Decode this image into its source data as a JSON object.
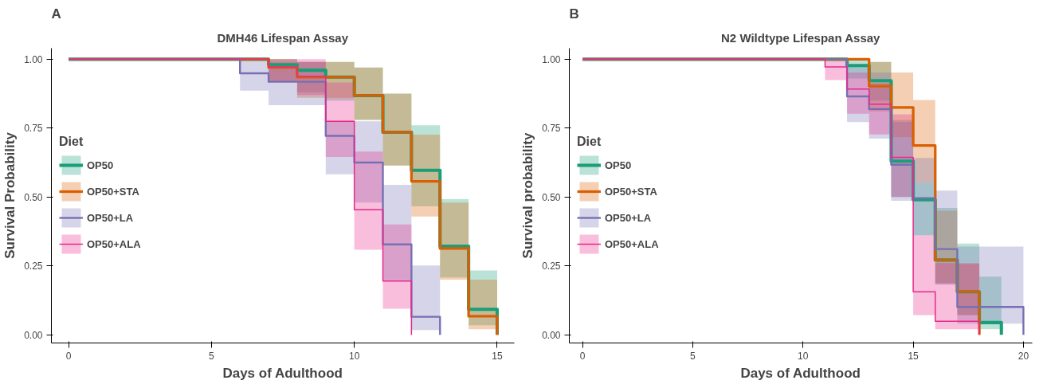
{
  "chart_data": [
    {
      "type": "step",
      "title": "DMH46 Lifespan Assay",
      "xlabel": "Days of Adulthood",
      "ylabel": "Survival Probability",
      "legend_title": "Diet",
      "legend": "left",
      "annotations": [
        "A"
      ],
      "xlim": [
        -0.6,
        15.6
      ],
      "xticks": [
        0,
        5,
        10,
        15
      ],
      "ylim": [
        -0.03,
        1.04
      ],
      "yticks": [
        {
          "value": 0,
          "label": "0.00"
        },
        {
          "value": 0.25,
          "label": "0.25"
        },
        {
          "value": 0.5,
          "label": "0.50"
        },
        {
          "value": 0.75,
          "label": "0.75"
        },
        {
          "value": 1,
          "label": "1.00"
        }
      ],
      "series": [
        {
          "name": "OP50",
          "color": "#1b9e77",
          "x": [
            0,
            7,
            8,
            9,
            10,
            11,
            12,
            13,
            14,
            15
          ],
          "values": [
            1,
            0.98,
            0.96,
            0.935,
            0.868,
            0.735,
            0.597,
            0.321,
            0.092,
            0
          ],
          "lower": [
            1,
            0.92,
            0.88,
            0.85,
            0.78,
            0.614,
            0.466,
            0.208,
            0.034,
            0.034
          ],
          "upper": [
            1,
            1,
            0.99,
            0.99,
            0.97,
            0.875,
            0.76,
            0.492,
            0.233,
            0.233
          ]
        },
        {
          "name": "OP50+STA",
          "color": "#d95f02",
          "x": [
            0,
            7,
            8,
            10,
            11,
            12,
            13,
            14,
            15
          ],
          "values": [
            1,
            0.97,
            0.935,
            0.868,
            0.735,
            0.557,
            0.313,
            0.067,
            0
          ],
          "lower": [
            1,
            0.92,
            0.86,
            0.78,
            0.614,
            0.429,
            0.2,
            0.02,
            0.02
          ],
          "upper": [
            1,
            1,
            0.99,
            0.97,
            0.875,
            0.726,
            0.48,
            0.2,
            0.2
          ]
        },
        {
          "name": "OP50+LA",
          "color": "#7570b3",
          "x": [
            0,
            6,
            7,
            9,
            10,
            11,
            12,
            13
          ],
          "values": [
            1,
            0.949,
            0.918,
            0.722,
            0.625,
            0.328,
            0.065,
            0
          ],
          "lower": [
            1,
            0.886,
            0.833,
            0.582,
            0.48,
            0.198,
            0.017,
            0.017
          ],
          "upper": [
            1,
            1,
            0.99,
            0.775,
            0.775,
            0.544,
            0.251,
            0.251
          ]
        },
        {
          "name": "OP50+ALA",
          "color": "#e7298a",
          "x": [
            0,
            7,
            8,
            9,
            10,
            11,
            12
          ],
          "values": [
            1,
            0.971,
            0.938,
            0.775,
            0.454,
            0.195,
            0
          ],
          "lower": [
            1,
            0.92,
            0.87,
            0.645,
            0.308,
            0.094,
            0.094
          ],
          "upper": [
            1,
            1,
            1,
            0.916,
            0.665,
            0.4,
            0.4
          ]
        }
      ]
    },
    {
      "type": "step",
      "title": "N2 Wildtype Lifespan Assay",
      "xlabel": "Days of Adulthood",
      "ylabel": "Survival probability",
      "legend_title": "Diet",
      "legend": "left",
      "annotations": [
        "B"
      ],
      "xlim": [
        -0.6,
        20.4
      ],
      "xticks": [
        0,
        5,
        10,
        15,
        20
      ],
      "ylim": [
        -0.03,
        1.04
      ],
      "yticks": [
        {
          "value": 0,
          "label": "0.00"
        },
        {
          "value": 0.25,
          "label": "0.25"
        },
        {
          "value": 0.5,
          "label": "0.50"
        },
        {
          "value": 0.75,
          "label": "0.75"
        },
        {
          "value": 1,
          "label": "1.00"
        }
      ],
      "series": [
        {
          "name": "OP50",
          "color": "#1b9e77",
          "x": [
            0,
            12,
            13,
            14,
            15,
            16,
            17,
            18,
            19
          ],
          "values": [
            1,
            0.977,
            0.922,
            0.63,
            0.49,
            0.271,
            0.156,
            0.044,
            0
          ],
          "lower": [
            1,
            0.93,
            0.85,
            0.5,
            0.361,
            0.186,
            0.071,
            0.02,
            0.02
          ],
          "upper": [
            1,
            1,
            0.99,
            0.78,
            0.552,
            0.46,
            0.331,
            0.211,
            0.211
          ]
        },
        {
          "name": "OP50+STA",
          "color": "#d95f02",
          "x": [
            0,
            13,
            14,
            15,
            16,
            17,
            18
          ],
          "values": [
            1,
            0.902,
            0.825,
            0.687,
            0.271,
            0.156,
            0
          ],
          "lower": [
            1,
            0.81,
            0.717,
            0.552,
            0.186,
            0.071,
            0.071
          ],
          "upper": [
            1,
            0.99,
            0.952,
            0.852,
            0.45,
            0.256,
            0.256
          ]
        },
        {
          "name": "OP50+LA",
          "color": "#7570b3",
          "x": [
            0,
            12,
            13,
            14,
            15,
            16,
            17,
            20
          ],
          "values": [
            1,
            0.865,
            0.819,
            0.617,
            0.496,
            0.311,
            0.101,
            0
          ],
          "lower": [
            1,
            0.772,
            0.712,
            0.486,
            0.361,
            0.181,
            0.04,
            0.04
          ],
          "upper": [
            1,
            0.972,
            0.952,
            0.772,
            0.642,
            0.523,
            0.32,
            0.32
          ]
        },
        {
          "name": "OP50+ALA",
          "color": "#e7298a",
          "x": [
            0,
            11,
            12,
            13,
            14,
            15,
            16,
            18
          ],
          "values": [
            1,
            0.972,
            0.892,
            0.837,
            0.644,
            0.156,
            0.049,
            0
          ],
          "lower": [
            1,
            0.924,
            0.802,
            0.727,
            0.5,
            0.071,
            0.02,
            0.02
          ],
          "upper": [
            1,
            1,
            0.952,
            0.912,
            0.8,
            0.361,
            0.26,
            0.26
          ]
        }
      ]
    }
  ]
}
